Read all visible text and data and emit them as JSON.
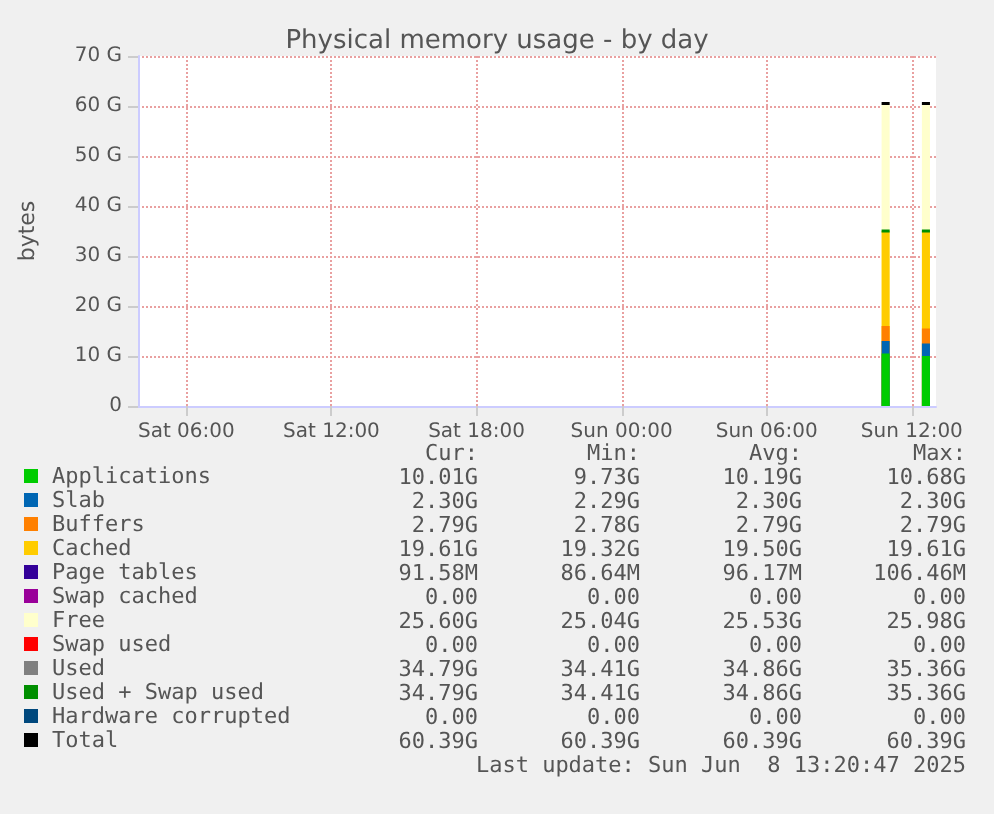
{
  "chart_data": {
    "type": "area",
    "stacked": true,
    "title": "Physical memory usage - by day",
    "ylabel": "bytes",
    "x": [
      "2025-06-08T10:45",
      "2025-06-08T11:05",
      "2025-06-08T11:10",
      "2025-06-08T12:25",
      "2025-06-08T12:45"
    ],
    "xlim": [
      "2025-06-07T04:00",
      "2025-06-08T13:00"
    ],
    "xticks": [
      {
        "value": "2025-06-07T06:00",
        "label": "Sat 06:00"
      },
      {
        "value": "2025-06-07T12:00",
        "label": "Sat 12:00"
      },
      {
        "value": "2025-06-07T18:00",
        "label": "Sat 18:00"
      },
      {
        "value": "2025-06-08T00:00",
        "label": "Sun 00:00"
      },
      {
        "value": "2025-06-08T06:00",
        "label": "Sun 06:00"
      },
      {
        "value": "2025-06-08T12:00",
        "label": "Sun 12:00"
      }
    ],
    "ylim": [
      0,
      70
    ],
    "yticks": [
      0,
      {
        "value": 10,
        "label": "10 G"
      },
      {
        "value": 20,
        "label": "20 G"
      },
      {
        "value": 30,
        "label": "30 G"
      },
      {
        "value": 40,
        "label": "40 G"
      },
      {
        "value": 50,
        "label": "50 G"
      },
      {
        "value": 60,
        "label": "60 G"
      },
      {
        "value": 70,
        "label": "70 G"
      }
    ],
    "grid": true,
    "legend": "bottom left",
    "marker": "none",
    "series": [
      {
        "name": "Applications",
        "color": "#00cc00",
        "values": [
          10.5,
          10.5,
          null,
          10,
          10
        ]
      },
      {
        "name": "Slab",
        "color": "#0066b3",
        "values": [
          2.5,
          2.5,
          null,
          2.5,
          2.5
        ]
      },
      {
        "name": "Buffers",
        "color": "#ff8000",
        "values": [
          3,
          3,
          null,
          3,
          3
        ]
      },
      {
        "name": "Cached",
        "color": "#ffcc00",
        "values": [
          19,
          19,
          null,
          19.5,
          19.5
        ]
      },
      {
        "name": "Page tables",
        "color": "#330099",
        "values": [
          null,
          null,
          null,
          null,
          null
        ]
      },
      {
        "name": "Swap cached",
        "color": "#990099",
        "values": [
          null,
          null,
          null,
          null,
          null
        ]
      },
      {
        "name": "Free",
        "color": "#ffffcc",
        "values": [
          25.5,
          25.5,
          null,
          25.5,
          25.5
        ]
      },
      {
        "name": "Swap used",
        "color": "#ff0000",
        "type": "line",
        "values": [
          null,
          null,
          null,
          null,
          null
        ]
      },
      {
        "name": "Used",
        "color": "#808080",
        "type": "line",
        "values": [
          null,
          null,
          null,
          null,
          null
        ]
      },
      {
        "name": "Used + Swap used",
        "color": "#008f00",
        "type": "line",
        "values": [
          35,
          35,
          null,
          35,
          35
        ]
      },
      {
        "name": "Hardware corrupted",
        "color": "#00487d",
        "type": "line",
        "values": [
          null,
          null,
          null,
          null,
          null
        ]
      },
      {
        "name": "Total",
        "color": "#000000",
        "type": "line",
        "values": [
          60.5,
          60.5,
          null,
          60.5,
          60.5
        ]
      }
    ],
    "annotations": [
      "Cur:",
      "Min:",
      "Avg:",
      "Max:",
      "10.01G",
      "9.73G",
      "10.19G",
      "10.68G",
      "2.30G",
      "2.29G",
      "2.30G",
      "2.30G",
      "2.79G",
      "2.78G",
      "2.79G",
      "2.79G",
      "19.61G",
      "19.32G",
      "19.50G",
      "19.61G",
      "91.58M",
      "86.64M",
      "96.17M",
      "106.46M",
      "0.00",
      "0.00",
      "0.00",
      "0.00",
      "25.60G",
      "25.04G",
      "25.53G",
      "25.98G",
      "0.00",
      "0.00",
      "0.00",
      "0.00",
      "34.79G",
      "34.41G",
      "34.86G",
      "35.36G",
      "34.79G",
      "34.41G",
      "34.86G",
      "35.36G",
      "0.00",
      "0.00",
      "0.00",
      "0.00",
      "60.39G",
      "60.39G",
      "60.39G",
      "60.39G",
      "Last update: Sun Jun  8 13:20:47 2025"
    ]
  }
}
